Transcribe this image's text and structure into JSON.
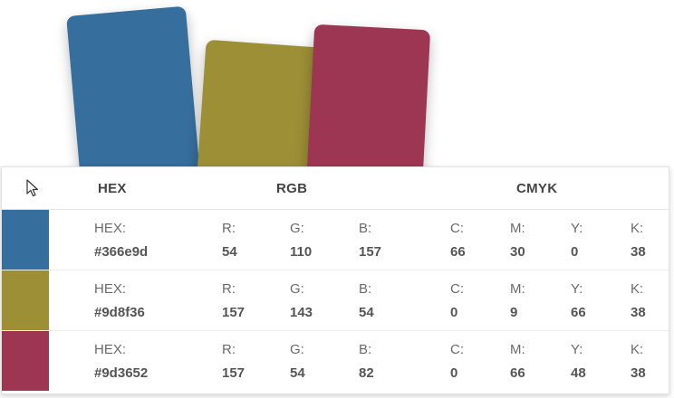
{
  "cards": [
    {
      "name": "blue",
      "color": "#366e9d"
    },
    {
      "name": "mustard",
      "color": "#9d8f36"
    },
    {
      "name": "crimson",
      "color": "#9d3652"
    }
  ],
  "table": {
    "headers": {
      "hex": "HEX",
      "rgb": "RGB",
      "cmyk": "CMYK"
    },
    "labels": {
      "hex": "HEX:",
      "r": "R:",
      "g": "G:",
      "b": "B:",
      "c": "C:",
      "m": "M:",
      "y": "Y:",
      "k": "K:"
    },
    "rows": [
      {
        "swatch_color": "#366e9d",
        "hex": "#366e9d",
        "r": "54",
        "g": "110",
        "b": "157",
        "c": "66",
        "m": "30",
        "y": "0",
        "k": "38"
      },
      {
        "swatch_color": "#9d8f36",
        "hex": "#9d8f36",
        "r": "157",
        "g": "143",
        "b": "54",
        "c": "0",
        "m": "9",
        "y": "66",
        "k": "38"
      },
      {
        "swatch_color": "#9d3652",
        "hex": "#9d3652",
        "r": "157",
        "g": "54",
        "b": "82",
        "c": "0",
        "m": "66",
        "y": "48",
        "k": "38"
      }
    ]
  },
  "icons": {
    "cursor": "mouse-pointer-icon"
  }
}
